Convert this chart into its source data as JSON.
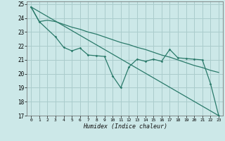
{
  "xlabel": "Humidex (Indice chaleur)",
  "xlim": [
    -0.5,
    23.5
  ],
  "ylim": [
    17,
    25.2
  ],
  "yticks": [
    17,
    18,
    19,
    20,
    21,
    22,
    23,
    24,
    25
  ],
  "xticks": [
    0,
    1,
    2,
    3,
    4,
    5,
    6,
    7,
    8,
    9,
    10,
    11,
    12,
    13,
    14,
    15,
    16,
    17,
    18,
    19,
    20,
    21,
    22,
    23
  ],
  "bg_color": "#cce8e8",
  "grid_color": "#aacccc",
  "line_color": "#2a7a6a",
  "line1_x": [
    0,
    1,
    2,
    3,
    4,
    5,
    6,
    7,
    8,
    9,
    10,
    11,
    12,
    13,
    14,
    15,
    16,
    17,
    18,
    19,
    20,
    21,
    22,
    23
  ],
  "line1_y": [
    24.8,
    23.75,
    23.85,
    23.75,
    23.55,
    23.35,
    23.2,
    23.0,
    22.85,
    22.65,
    22.45,
    22.25,
    22.1,
    21.9,
    21.75,
    21.55,
    21.35,
    21.2,
    21.0,
    20.8,
    20.6,
    20.45,
    20.25,
    20.1
  ],
  "line2_x": [
    0,
    1,
    3,
    4,
    5,
    6,
    7,
    8,
    9,
    10,
    11,
    12,
    13,
    14,
    15,
    16,
    17,
    18,
    19,
    20,
    21,
    22,
    23
  ],
  "line2_y": [
    24.8,
    23.75,
    22.65,
    21.9,
    21.65,
    21.85,
    21.35,
    21.3,
    21.25,
    19.85,
    19.0,
    20.5,
    21.05,
    20.9,
    21.05,
    20.9,
    21.75,
    21.15,
    21.1,
    21.05,
    21.0,
    19.3,
    17.0
  ],
  "line3_x": [
    0,
    23
  ],
  "line3_y": [
    24.8,
    17.0
  ]
}
